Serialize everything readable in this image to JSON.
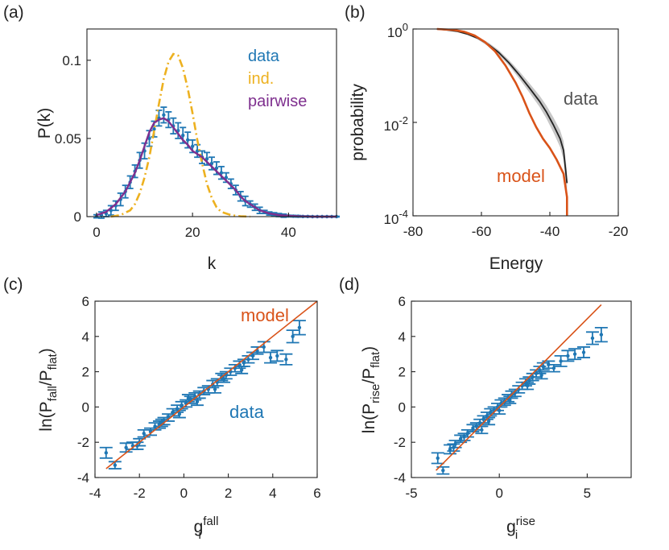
{
  "chart_data": [
    {
      "id": "a",
      "type": "line",
      "panel_label": "(a)",
      "xlabel": "k",
      "ylabel": "P(k)",
      "xlim": [
        -2,
        50
      ],
      "ylim": [
        0,
        0.12
      ],
      "xticks": [
        0,
        20,
        40
      ],
      "yticks": [
        0,
        0.05,
        0.1
      ],
      "xtick_labels": [
        "0",
        "20",
        "40"
      ],
      "ytick_labels": [
        "0",
        "0.05",
        "0.1"
      ],
      "legend": [
        "data",
        "ind.",
        "pairwise"
      ],
      "colors": {
        "data": "#1f77b4",
        "ind": "#EDB120",
        "pairwise": "#7E2F8E"
      },
      "data_series": {
        "name": "data",
        "x": [
          0,
          1,
          2,
          3,
          4,
          5,
          6,
          7,
          8,
          9,
          10,
          11,
          12,
          13,
          14,
          15,
          16,
          17,
          18,
          19,
          20,
          21,
          22,
          23,
          24,
          25,
          26,
          27,
          28,
          29,
          30,
          31,
          32,
          33,
          34,
          35,
          36,
          37,
          38,
          39,
          40,
          41,
          42,
          43,
          44,
          45,
          46,
          47,
          48,
          49,
          50
        ],
        "y": [
          0.0002,
          0.001,
          0.002,
          0.004,
          0.007,
          0.011,
          0.016,
          0.022,
          0.029,
          0.036,
          0.042,
          0.05,
          0.056,
          0.063,
          0.065,
          0.062,
          0.058,
          0.055,
          0.052,
          0.049,
          0.045,
          0.042,
          0.038,
          0.037,
          0.034,
          0.031,
          0.028,
          0.025,
          0.021,
          0.017,
          0.013,
          0.01,
          0.008,
          0.006,
          0.004,
          0.003,
          0.002,
          0.0015,
          0.001,
          0.0006,
          0.0004,
          0.0003,
          0.0002,
          0.0001,
          0.0001,
          0.0,
          0.0,
          0.0,
          0.0,
          0.0,
          0.0
        ],
        "err": [
          0.001,
          0.002,
          0.002,
          0.003,
          0.003,
          0.004,
          0.004,
          0.004,
          0.004,
          0.005,
          0.005,
          0.005,
          0.005,
          0.005,
          0.005,
          0.005,
          0.005,
          0.005,
          0.005,
          0.005,
          0.004,
          0.004,
          0.004,
          0.004,
          0.004,
          0.004,
          0.004,
          0.003,
          0.003,
          0.003,
          0.003,
          0.003,
          0.002,
          0.002,
          0.002,
          0.001,
          0.001,
          0.001,
          0.001,
          0.001,
          0.0005,
          0.0005,
          0.0005,
          0.0003,
          0.0003,
          0.0002,
          0.0002,
          0.0002,
          0.0002,
          0.0002,
          0.0002
        ]
      },
      "ind_series": {
        "name": "ind.",
        "x": [
          3,
          5,
          7,
          8,
          9,
          10,
          11,
          12,
          13,
          14,
          15,
          16,
          17,
          18,
          19,
          20,
          21,
          22,
          23,
          24,
          25,
          26,
          28,
          30,
          32
        ],
        "y": [
          0.0,
          0.001,
          0.004,
          0.008,
          0.015,
          0.025,
          0.038,
          0.055,
          0.072,
          0.088,
          0.099,
          0.104,
          0.103,
          0.095,
          0.082,
          0.066,
          0.049,
          0.034,
          0.021,
          0.012,
          0.006,
          0.003,
          0.001,
          0.0002,
          0.0
        ]
      },
      "pairwise_series": {
        "name": "pairwise",
        "x": [
          0,
          2,
          4,
          6,
          8,
          9,
          10,
          11,
          12,
          13,
          14,
          15,
          16,
          17,
          18,
          19,
          20,
          21,
          22,
          23,
          24,
          25,
          26,
          27,
          28,
          29,
          30,
          31,
          32,
          33,
          34,
          36,
          38,
          40,
          42,
          45,
          50
        ],
        "y": [
          0.001,
          0.003,
          0.008,
          0.016,
          0.028,
          0.036,
          0.045,
          0.054,
          0.06,
          0.062,
          0.063,
          0.061,
          0.057,
          0.053,
          0.049,
          0.046,
          0.042,
          0.04,
          0.038,
          0.035,
          0.032,
          0.029,
          0.026,
          0.023,
          0.02,
          0.017,
          0.013,
          0.01,
          0.008,
          0.006,
          0.004,
          0.002,
          0.001,
          0.0005,
          0.0002,
          0.0,
          0.0
        ]
      }
    },
    {
      "id": "b",
      "type": "line",
      "panel_label": "(b)",
      "xlabel": "Energy",
      "ylabel": "probability",
      "xlim": [
        -80,
        -20
      ],
      "ylim_log10": [
        -4,
        0
      ],
      "xticks": [
        -80,
        -60,
        -40,
        -20
      ],
      "yticks_log10": [
        0,
        -2,
        -4
      ],
      "xtick_labels": [
        "-80",
        "-60",
        "-40",
        "-20"
      ],
      "ytick_base": "10",
      "ytick_exponents": [
        "0",
        "-2",
        "-4"
      ],
      "annotations": [
        "data",
        "model"
      ],
      "colors": {
        "data": "#222222",
        "band": "#bdbdbd",
        "model": "#D95319",
        "data_label": "#555555"
      },
      "data_series": {
        "name": "data",
        "x": [
          -73,
          -70,
          -67,
          -64,
          -61,
          -58,
          -55,
          -52,
          -49,
          -46,
          -43,
          -41,
          -39,
          -37,
          -36,
          -35
        ],
        "log10_y": [
          0,
          -0.02,
          -0.05,
          -0.11,
          -0.2,
          -0.33,
          -0.5,
          -0.72,
          -0.98,
          -1.26,
          -1.55,
          -1.78,
          -2.05,
          -2.35,
          -2.6,
          -3.3
        ],
        "band_log10": [
          0.02,
          0.02,
          0.02,
          0.02,
          0.03,
          0.04,
          0.05,
          0.06,
          0.08,
          0.1,
          0.12,
          0.14,
          0.16,
          0.18,
          0.2,
          0.25
        ]
      },
      "model_series": {
        "name": "model",
        "x": [
          -73,
          -68,
          -65,
          -62,
          -59,
          -56,
          -53,
          -50,
          -48,
          -46,
          -44,
          -42,
          -40,
          -38,
          -36,
          -35,
          -35
        ],
        "log10_y": [
          0,
          -0.02,
          -0.06,
          -0.14,
          -0.28,
          -0.48,
          -0.78,
          -1.15,
          -1.45,
          -1.8,
          -2.1,
          -2.35,
          -2.55,
          -2.8,
          -3.1,
          -3.6,
          -4
        ]
      }
    },
    {
      "id": "c",
      "type": "scatter",
      "panel_label": "(c)",
      "xlabel_base": "g",
      "xlabel_sub": "i",
      "xlabel_sup": "fall",
      "ylabel_prefix": "ln(P",
      "ylabel_sub1": "fall",
      "ylabel_mid": "/P",
      "ylabel_sub2": "flat",
      "ylabel_suffix": ")",
      "xlim": [
        -4,
        6
      ],
      "ylim": [
        -4,
        6
      ],
      "xticks": [
        -4,
        -2,
        0,
        2,
        4,
        6
      ],
      "yticks": [
        -4,
        -2,
        0,
        2,
        4,
        6
      ],
      "xtick_labels": [
        "-4",
        "-2",
        "0",
        "2",
        "4",
        "6"
      ],
      "ytick_labels": [
        "-4",
        "-2",
        "0",
        "2",
        "4",
        "6"
      ],
      "annotations": [
        "model",
        "data"
      ],
      "colors": {
        "data": "#1f77b4",
        "model": "#D95319"
      },
      "model_line": {
        "x": [
          -3.5,
          6
        ],
        "y": [
          -3.5,
          6
        ]
      },
      "points": {
        "x": [
          -3.5,
          -3.1,
          -2.6,
          -2.3,
          -2.0,
          -1.8,
          -1.5,
          -1.3,
          -1.1,
          -0.9,
          -0.7,
          -0.5,
          -0.3,
          -0.1,
          0.1,
          0.3,
          0.5,
          0.7,
          0.9,
          1.1,
          1.3,
          1.5,
          1.7,
          1.9,
          2.1,
          2.3,
          2.5,
          2.7,
          2.9,
          3.1,
          3.3,
          3.6,
          3.9,
          4.2,
          4.6,
          4.9,
          5.2,
          -1.0,
          0.2,
          1.4,
          -2.1,
          -0.2,
          0.6,
          1.8,
          2.6
        ],
        "y": [
          -2.6,
          -3.3,
          -2.3,
          -2.2,
          -2.0,
          -1.5,
          -1.4,
          -1.1,
          -1.0,
          -0.8,
          -0.6,
          -0.3,
          -0.1,
          0.1,
          0.2,
          0.4,
          0.6,
          0.7,
          0.9,
          1.0,
          1.3,
          1.4,
          1.7,
          1.8,
          2.0,
          2.2,
          2.4,
          2.5,
          2.7,
          2.9,
          3.2,
          3.4,
          2.8,
          2.9,
          2.7,
          4.0,
          4.5,
          -0.9,
          0.5,
          1.0,
          -2.2,
          -0.4,
          0.3,
          1.6,
          2.1
        ],
        "err": [
          0.3,
          0.2,
          0.25,
          0.2,
          0.2,
          0.2,
          0.2,
          0.2,
          0.2,
          0.2,
          0.2,
          0.2,
          0.2,
          0.2,
          0.2,
          0.2,
          0.2,
          0.2,
          0.2,
          0.2,
          0.2,
          0.2,
          0.2,
          0.2,
          0.2,
          0.2,
          0.2,
          0.2,
          0.2,
          0.2,
          0.2,
          0.3,
          0.3,
          0.3,
          0.3,
          0.35,
          0.4,
          0.2,
          0.2,
          0.2,
          0.2,
          0.2,
          0.2,
          0.2,
          0.2
        ]
      }
    },
    {
      "id": "d",
      "type": "scatter",
      "panel_label": "(d)",
      "xlabel_base": "g",
      "xlabel_sub": "i",
      "xlabel_sup": "rise",
      "ylabel_prefix": "ln(P",
      "ylabel_sub1": "rise",
      "ylabel_mid": "/P",
      "ylabel_sub2": "flat",
      "ylabel_suffix": ")",
      "xlim": [
        -5,
        7.5
      ],
      "ylim": [
        -4,
        6
      ],
      "xticks": [
        -5,
        0,
        5
      ],
      "yticks": [
        -4,
        -2,
        0,
        2,
        4,
        6
      ],
      "xtick_labels": [
        "-5",
        "0",
        "5"
      ],
      "ytick_labels": [
        "-4",
        "-2",
        "0",
        "2",
        "4",
        "6"
      ],
      "colors": {
        "data": "#1f77b4",
        "model": "#D95319"
      },
      "model_line": {
        "x": [
          -3.6,
          5.8
        ],
        "y": [
          -3.6,
          5.8
        ]
      },
      "points": {
        "x": [
          -3.5,
          -3.2,
          -2.8,
          -2.5,
          -2.2,
          -2.0,
          -1.8,
          -1.5,
          -1.3,
          -1.1,
          -0.9,
          -0.7,
          -0.5,
          -0.3,
          -0.1,
          0.1,
          0.3,
          0.5,
          0.7,
          0.9,
          1.1,
          1.3,
          1.5,
          1.7,
          1.9,
          2.1,
          2.3,
          2.5,
          2.8,
          3.1,
          3.5,
          3.9,
          4.3,
          4.8,
          5.3,
          5.8,
          -2.6,
          -0.6,
          0.6,
          1.6,
          -1.0,
          0.0,
          2.4
        ],
        "y": [
          -2.9,
          -3.6,
          -2.4,
          -2.1,
          -1.8,
          -1.7,
          -1.5,
          -1.2,
          -1.1,
          -0.9,
          -0.7,
          -0.5,
          -0.3,
          -0.2,
          0.0,
          0.2,
          0.3,
          0.5,
          0.7,
          0.8,
          1.0,
          1.2,
          1.4,
          1.5,
          1.7,
          1.9,
          2.1,
          2.3,
          2.4,
          2.2,
          2.6,
          2.9,
          3.0,
          3.1,
          3.9,
          4.1,
          -2.3,
          -0.8,
          0.4,
          1.2,
          -1.3,
          -0.2,
          1.8
        ],
        "err": [
          0.3,
          0.2,
          0.25,
          0.2,
          0.2,
          0.2,
          0.2,
          0.2,
          0.2,
          0.2,
          0.2,
          0.2,
          0.2,
          0.2,
          0.2,
          0.2,
          0.2,
          0.2,
          0.2,
          0.2,
          0.2,
          0.2,
          0.2,
          0.2,
          0.2,
          0.2,
          0.2,
          0.2,
          0.2,
          0.2,
          0.3,
          0.3,
          0.3,
          0.3,
          0.35,
          0.4,
          0.2,
          0.2,
          0.2,
          0.2,
          0.2,
          0.2,
          0.2
        ]
      }
    }
  ]
}
